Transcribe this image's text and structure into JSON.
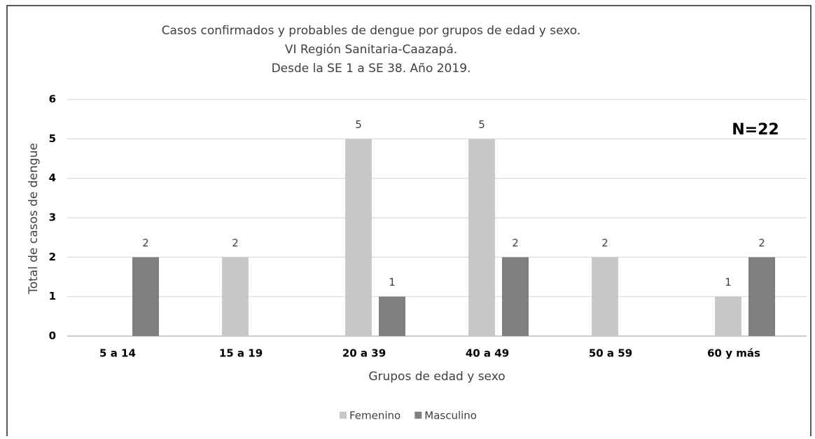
{
  "chart_data": {
    "type": "bar",
    "title": [
      "Casos confirmados y probables de dengue por grupos de edad y sexo.",
      "VI Región Sanitaria-Caazapá.",
      "Desde la SE 1 a SE 38. Año 2019."
    ],
    "annotation": "N=22",
    "x_label": "Grupos de edad y sexo",
    "y_label": "Total de casos de dengue",
    "categories": [
      "5 a 14",
      "15 a 19",
      "20 a 39",
      "40 a 49",
      "50 a 59",
      "60 y más"
    ],
    "series": [
      {
        "name": "Femenino",
        "color": "#c8c8c8",
        "values": [
          null,
          2,
          5,
          5,
          2,
          1
        ]
      },
      {
        "name": "Masculino",
        "color": "#808080",
        "values": [
          2,
          null,
          1,
          2,
          null,
          2
        ]
      }
    ],
    "ylim": [
      0,
      6
    ],
    "yticks": [
      0,
      1,
      2,
      3,
      4,
      5,
      6
    ],
    "grid": true,
    "legend": "bottom"
  }
}
